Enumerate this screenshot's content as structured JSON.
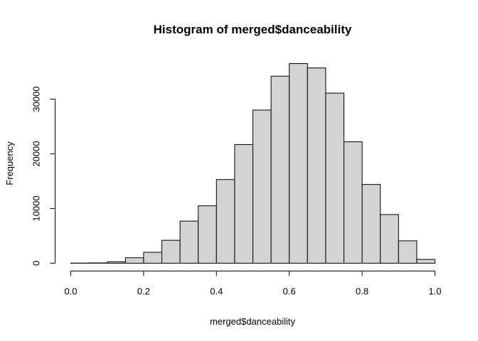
{
  "chart_data": {
    "type": "bar",
    "title": "Histogram of merged$danceability",
    "xlabel": "merged$danceability",
    "ylabel": "Frequency",
    "bin_edges": [
      0.0,
      0.05,
      0.1,
      0.15,
      0.2,
      0.25,
      0.3,
      0.35,
      0.4,
      0.45,
      0.5,
      0.55,
      0.6,
      0.65,
      0.7,
      0.75,
      0.8,
      0.85,
      0.9,
      0.95,
      1.0
    ],
    "values": [
      30,
      50,
      250,
      1000,
      2000,
      4200,
      7700,
      10500,
      15300,
      21700,
      28000,
      34200,
      36500,
      35700,
      31100,
      22200,
      14400,
      8900,
      4100,
      700
    ],
    "xlim": [
      0.0,
      1.0
    ],
    "ylim": [
      0,
      36500
    ],
    "x_ticks": [
      "0.0",
      "0.2",
      "0.4",
      "0.6",
      "0.8",
      "1.0"
    ],
    "x_tick_values": [
      0.0,
      0.2,
      0.4,
      0.6,
      0.8,
      1.0
    ],
    "y_ticks": [
      "0",
      "10000",
      "20000",
      "30000"
    ],
    "y_tick_values": [
      0,
      10000,
      20000,
      30000
    ],
    "grid": false,
    "colors": {
      "bar_fill": "#d3d3d3",
      "bar_stroke": "#000000"
    }
  }
}
